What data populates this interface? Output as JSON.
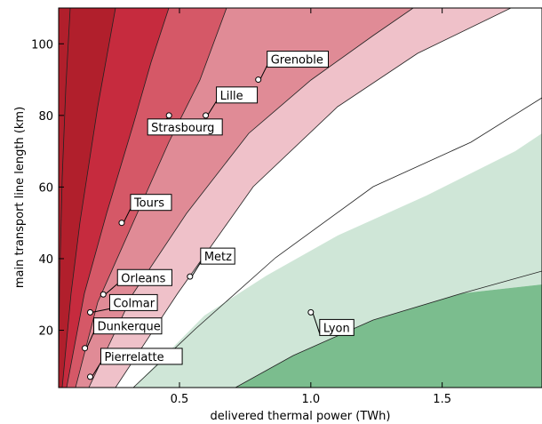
{
  "chart_data": {
    "type": "contour",
    "xlabel": "delivered thermal power (TWh)",
    "ylabel": "main transport line length (km)",
    "xlim": [
      0.04,
      1.88
    ],
    "ylim": [
      4,
      110
    ],
    "xticks": [
      0.5,
      1.0,
      1.5
    ],
    "xtick_labels": [
      "0.5",
      "1.0",
      "1.5"
    ],
    "yticks": [
      20,
      40,
      60,
      80,
      100
    ],
    "ytick_labels": [
      "20",
      "40",
      "60",
      "80",
      "100"
    ],
    "grid": false,
    "level_colors": [
      "#b11f2c",
      "#c62b3e",
      "#d55867",
      "#e08b96",
      "#efc1c9",
      "#ffffff",
      "#cfe6d7",
      "#7bbd8e"
    ],
    "cities": [
      {
        "name": "Grenoble",
        "x": 0.8,
        "y": 90
      },
      {
        "name": "Lille",
        "x": 0.6,
        "y": 80
      },
      {
        "name": "Strasbourg",
        "x": 0.46,
        "y": 80
      },
      {
        "name": "Tours",
        "x": 0.28,
        "y": 50
      },
      {
        "name": "Metz",
        "x": 0.54,
        "y": 35
      },
      {
        "name": "Orleans",
        "x": 0.21,
        "y": 30
      },
      {
        "name": "Colmar",
        "x": 0.16,
        "y": 25
      },
      {
        "name": "Lyon",
        "x": 1.0,
        "y": 25
      },
      {
        "name": "Dunkerque",
        "x": 0.14,
        "y": 15
      },
      {
        "name": "Pierrelatte",
        "x": 0.16,
        "y": 7
      }
    ]
  }
}
